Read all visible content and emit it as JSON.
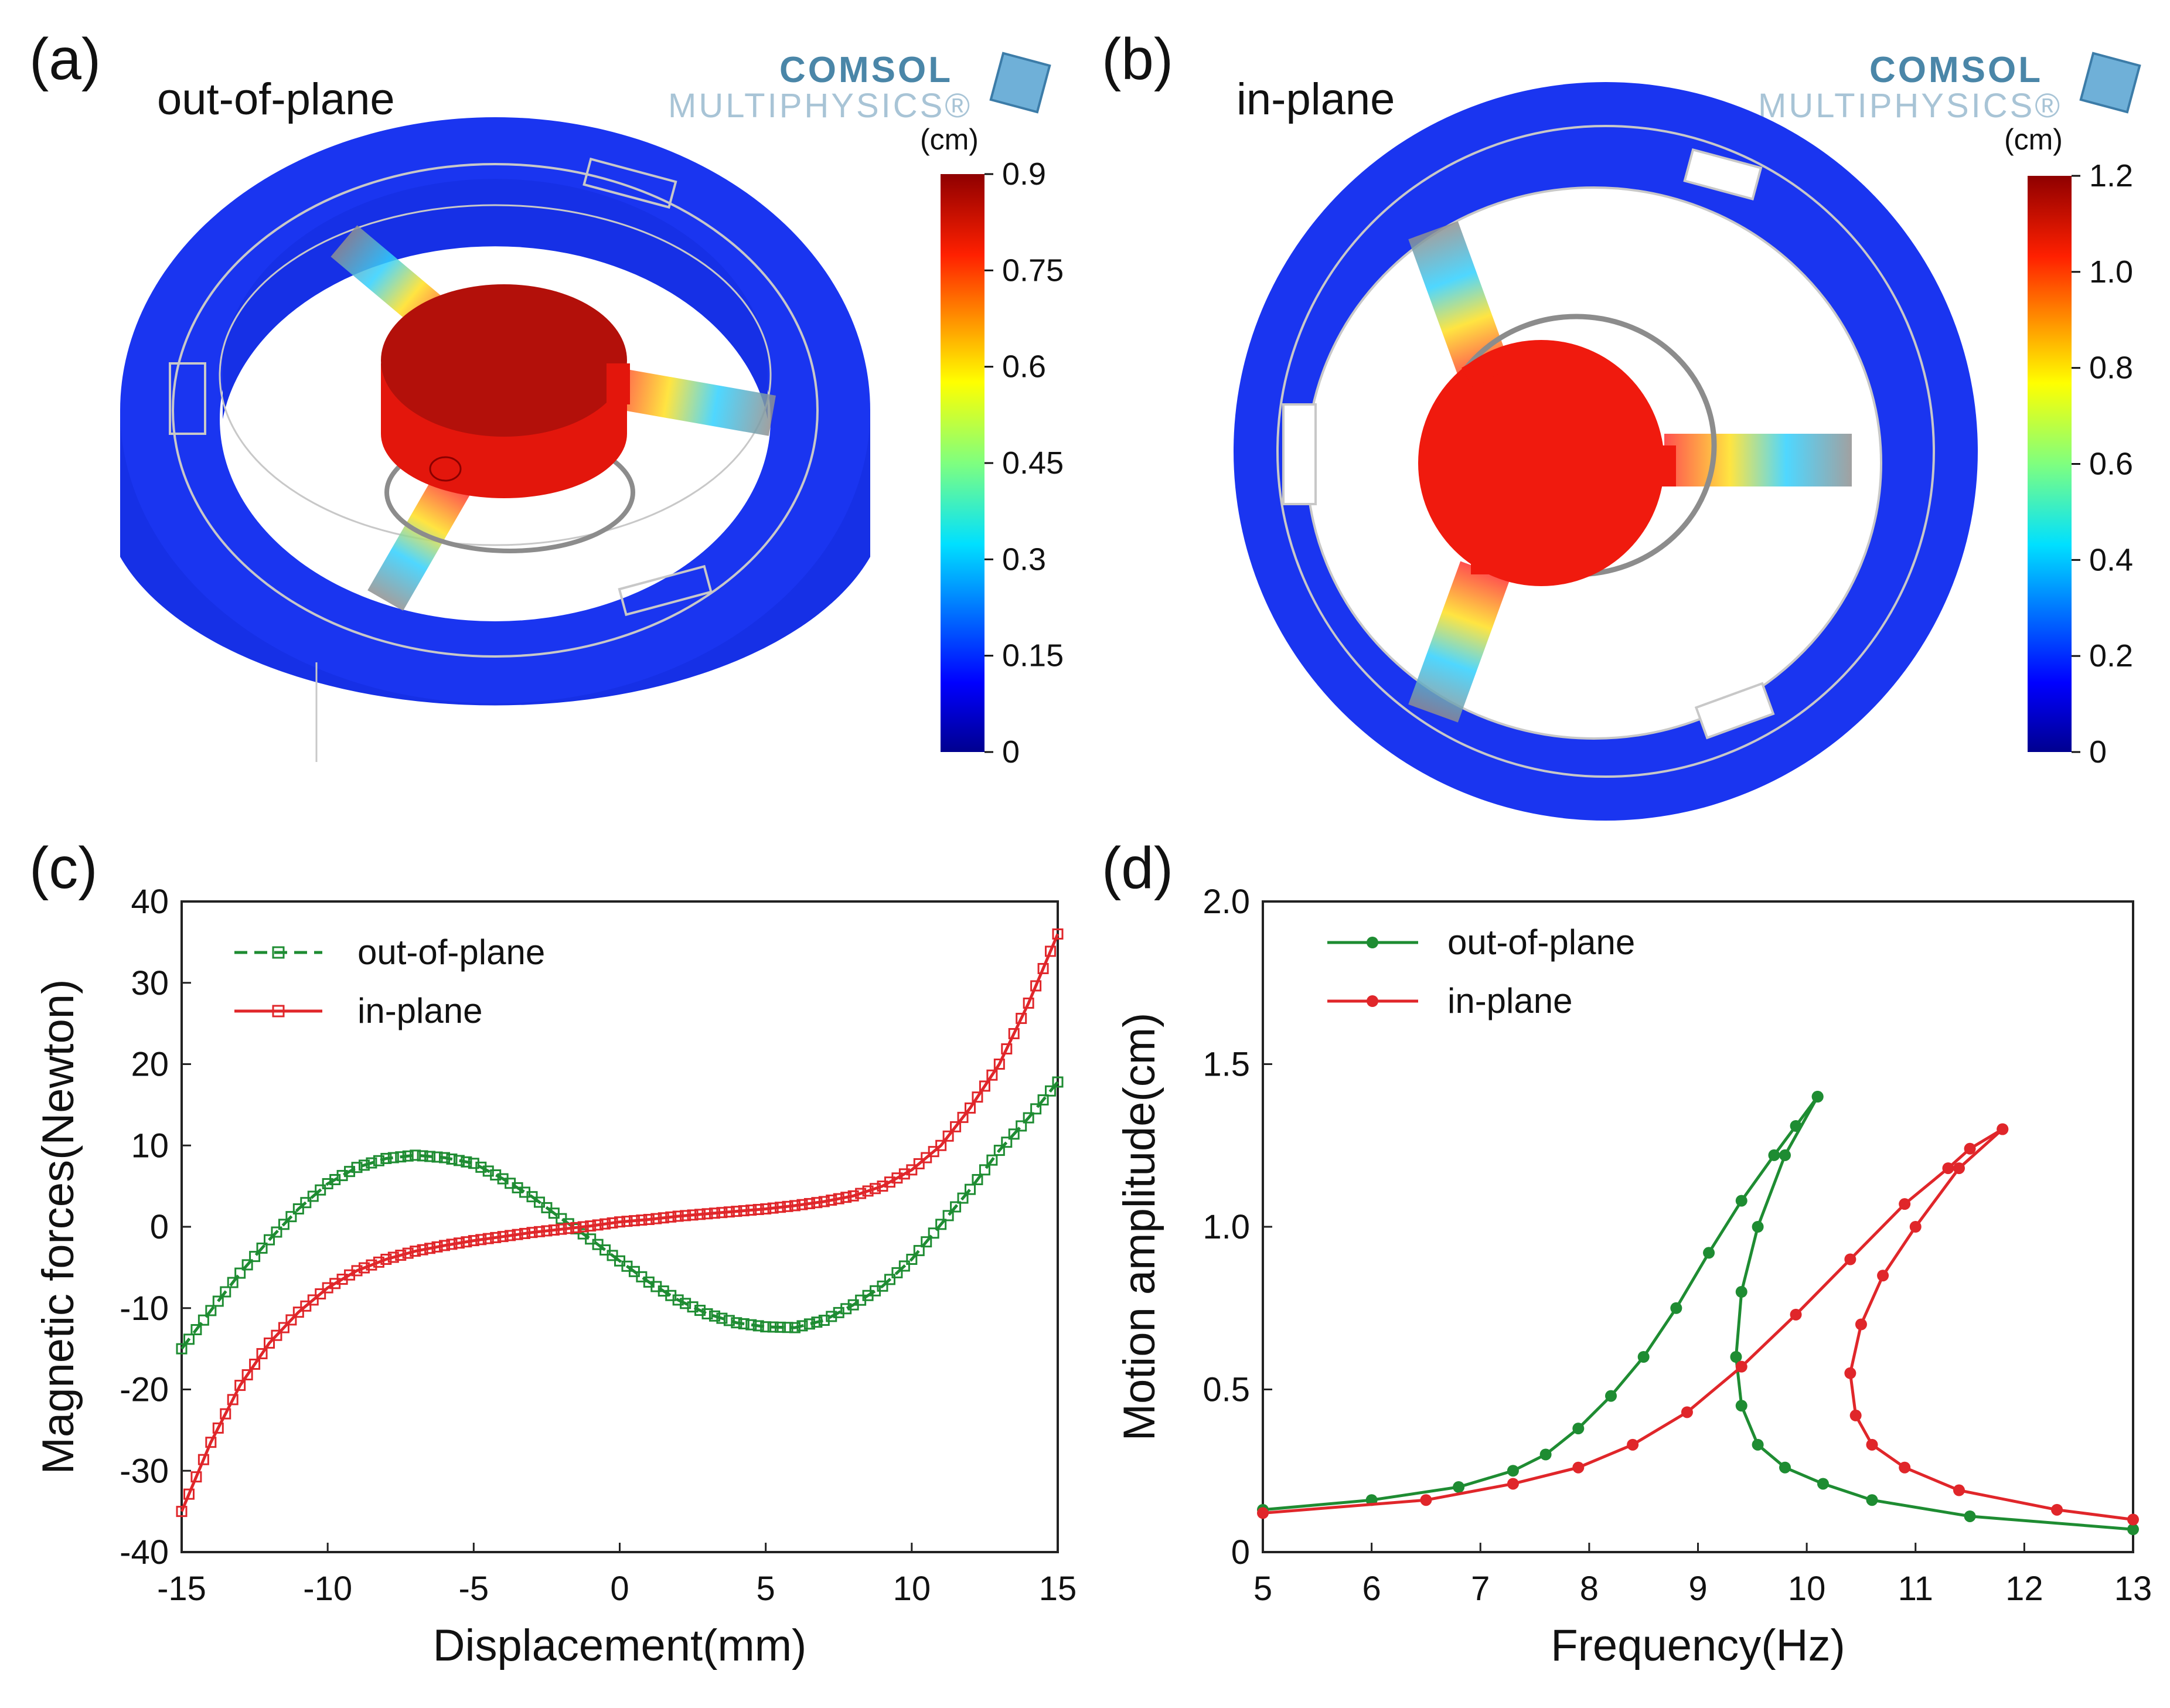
{
  "panels": {
    "a": {
      "label": "(a)",
      "title": "out-of-plane",
      "logo": {
        "line1": "COMSOL",
        "line2": "MULTIPHYSICS®"
      },
      "colorbar": {
        "unit": "(cm)",
        "ticks": [
          "0.9",
          "0.75",
          "0.6",
          "0.45",
          "0.3",
          "0.15",
          "0"
        ],
        "min": 0,
        "max": 0.9
      }
    },
    "b": {
      "label": "(b)",
      "title": "in-plane",
      "logo": {
        "line1": "COMSOL",
        "line2": "MULTIPHYSICS®"
      },
      "colorbar": {
        "unit": "(cm)",
        "ticks": [
          "1.2",
          "1.0",
          "0.8",
          "0.6",
          "0.4",
          "0.2",
          "0"
        ],
        "min": 0,
        "max": 1.2
      }
    },
    "c": {
      "label": "(c)"
    },
    "d": {
      "label": "(d)"
    }
  },
  "colors": {
    "green": "#1e8c32",
    "red": "#e0262a",
    "ring": "#1a2ee6",
    "mass": "#e01a0f"
  },
  "chart_data": [
    {
      "type": "line",
      "panel": "c",
      "title": "",
      "xlabel": "Displacement(mm)",
      "ylabel": "Magnetic forces(Newton)",
      "xlim": [
        -15,
        15
      ],
      "ylim": [
        -40,
        40
      ],
      "xticks": [
        -15,
        -10,
        -5,
        0,
        5,
        10,
        15
      ],
      "yticks": [
        -40,
        -30,
        -20,
        -10,
        0,
        10,
        20,
        30,
        40
      ],
      "legend": "top-left",
      "series": [
        {
          "name": "out-of-plane",
          "style": "dashed",
          "color": "#1e8c32",
          "x": [
            -15,
            -14,
            -13,
            -12,
            -11,
            -10,
            -9,
            -8,
            -7,
            -6,
            -5,
            -4,
            -3,
            -2,
            -1,
            0,
            1,
            2,
            3,
            4,
            5,
            6,
            7,
            8,
            9,
            10,
            11,
            12,
            13,
            14,
            15
          ],
          "y": [
            -15,
            -10.3,
            -5.7,
            -1.6,
            2.2,
            5.3,
            7.3,
            8.4,
            8.8,
            8.5,
            7.8,
            5.9,
            3.7,
            1.0,
            -1.5,
            -4.2,
            -6.8,
            -9.0,
            -10.7,
            -11.8,
            -12.3,
            -12.4,
            -11.5,
            -9.6,
            -7.3,
            -4.0,
            0.3,
            4.6,
            9.4,
            13.4,
            17.8
          ]
        },
        {
          "name": "in-plane",
          "style": "solid",
          "color": "#e0262a",
          "x": [
            -15,
            -14,
            -13,
            -12,
            -11,
            -10,
            -9,
            -8,
            -7,
            -6,
            -5,
            -4,
            -3,
            -2,
            -1,
            0,
            1,
            2,
            3,
            4,
            5,
            6,
            7,
            8,
            9,
            10,
            11,
            12,
            13,
            14,
            15
          ],
          "y": [
            -35,
            -26.5,
            -19.5,
            -14.3,
            -10.5,
            -7.5,
            -5.4,
            -4.0,
            -3.0,
            -2.3,
            -1.7,
            -1.2,
            -0.7,
            -0.3,
            0.1,
            0.6,
            0.9,
            1.3,
            1.6,
            1.9,
            2.2,
            2.6,
            3.1,
            3.8,
            5.0,
            7.0,
            10.0,
            14.6,
            20.0,
            27.5,
            36.0
          ]
        }
      ]
    },
    {
      "type": "line",
      "panel": "d",
      "title": "",
      "xlabel": "Frequency(Hz)",
      "ylabel": "Motion amplitude(cm)",
      "xlim": [
        5,
        13
      ],
      "ylim": [
        0,
        2.0
      ],
      "xticks": [
        5,
        6,
        7,
        8,
        9,
        10,
        11,
        12,
        13
      ],
      "yticks": [
        0,
        0.5,
        1.0,
        1.5,
        2.0
      ],
      "ytick_labels": [
        "0",
        "0.5",
        "1.0",
        "1.5",
        "2.0"
      ],
      "legend": "top-left",
      "series": [
        {
          "name": "out-of-plane",
          "color": "#1e8c32",
          "branches": [
            {
              "x": [
                5.0,
                6.0,
                6.8,
                7.3,
                7.6,
                7.9,
                8.2,
                8.5,
                8.8,
                9.1,
                9.4,
                9.7,
                9.9,
                10.1
              ],
              "y": [
                0.13,
                0.16,
                0.2,
                0.25,
                0.3,
                0.38,
                0.48,
                0.6,
                0.75,
                0.92,
                1.08,
                1.22,
                1.31,
                1.4
              ]
            },
            {
              "x": [
                10.1,
                9.8,
                9.55,
                9.4,
                9.35,
                9.4,
                9.55,
                9.8,
                10.15,
                10.6,
                11.5,
                13.0
              ],
              "y": [
                1.4,
                1.22,
                1.0,
                0.8,
                0.6,
                0.45,
                0.33,
                0.26,
                0.21,
                0.16,
                0.11,
                0.07
              ]
            }
          ]
        },
        {
          "name": "in-plane",
          "color": "#e0262a",
          "branches": [
            {
              "x": [
                5.0,
                6.5,
                7.3,
                7.9,
                8.4,
                8.9,
                9.4,
                9.9,
                10.4,
                10.9,
                11.3,
                11.5,
                11.8
              ],
              "y": [
                0.12,
                0.16,
                0.21,
                0.26,
                0.33,
                0.43,
                0.57,
                0.73,
                0.9,
                1.07,
                1.18,
                1.24,
                1.3
              ]
            },
            {
              "x": [
                11.8,
                11.4,
                11.0,
                10.7,
                10.5,
                10.4,
                10.45,
                10.6,
                10.9,
                11.4,
                12.3,
                13.0
              ],
              "y": [
                1.3,
                1.18,
                1.0,
                0.85,
                0.7,
                0.55,
                0.42,
                0.33,
                0.26,
                0.19,
                0.13,
                0.1
              ]
            }
          ]
        }
      ]
    }
  ]
}
